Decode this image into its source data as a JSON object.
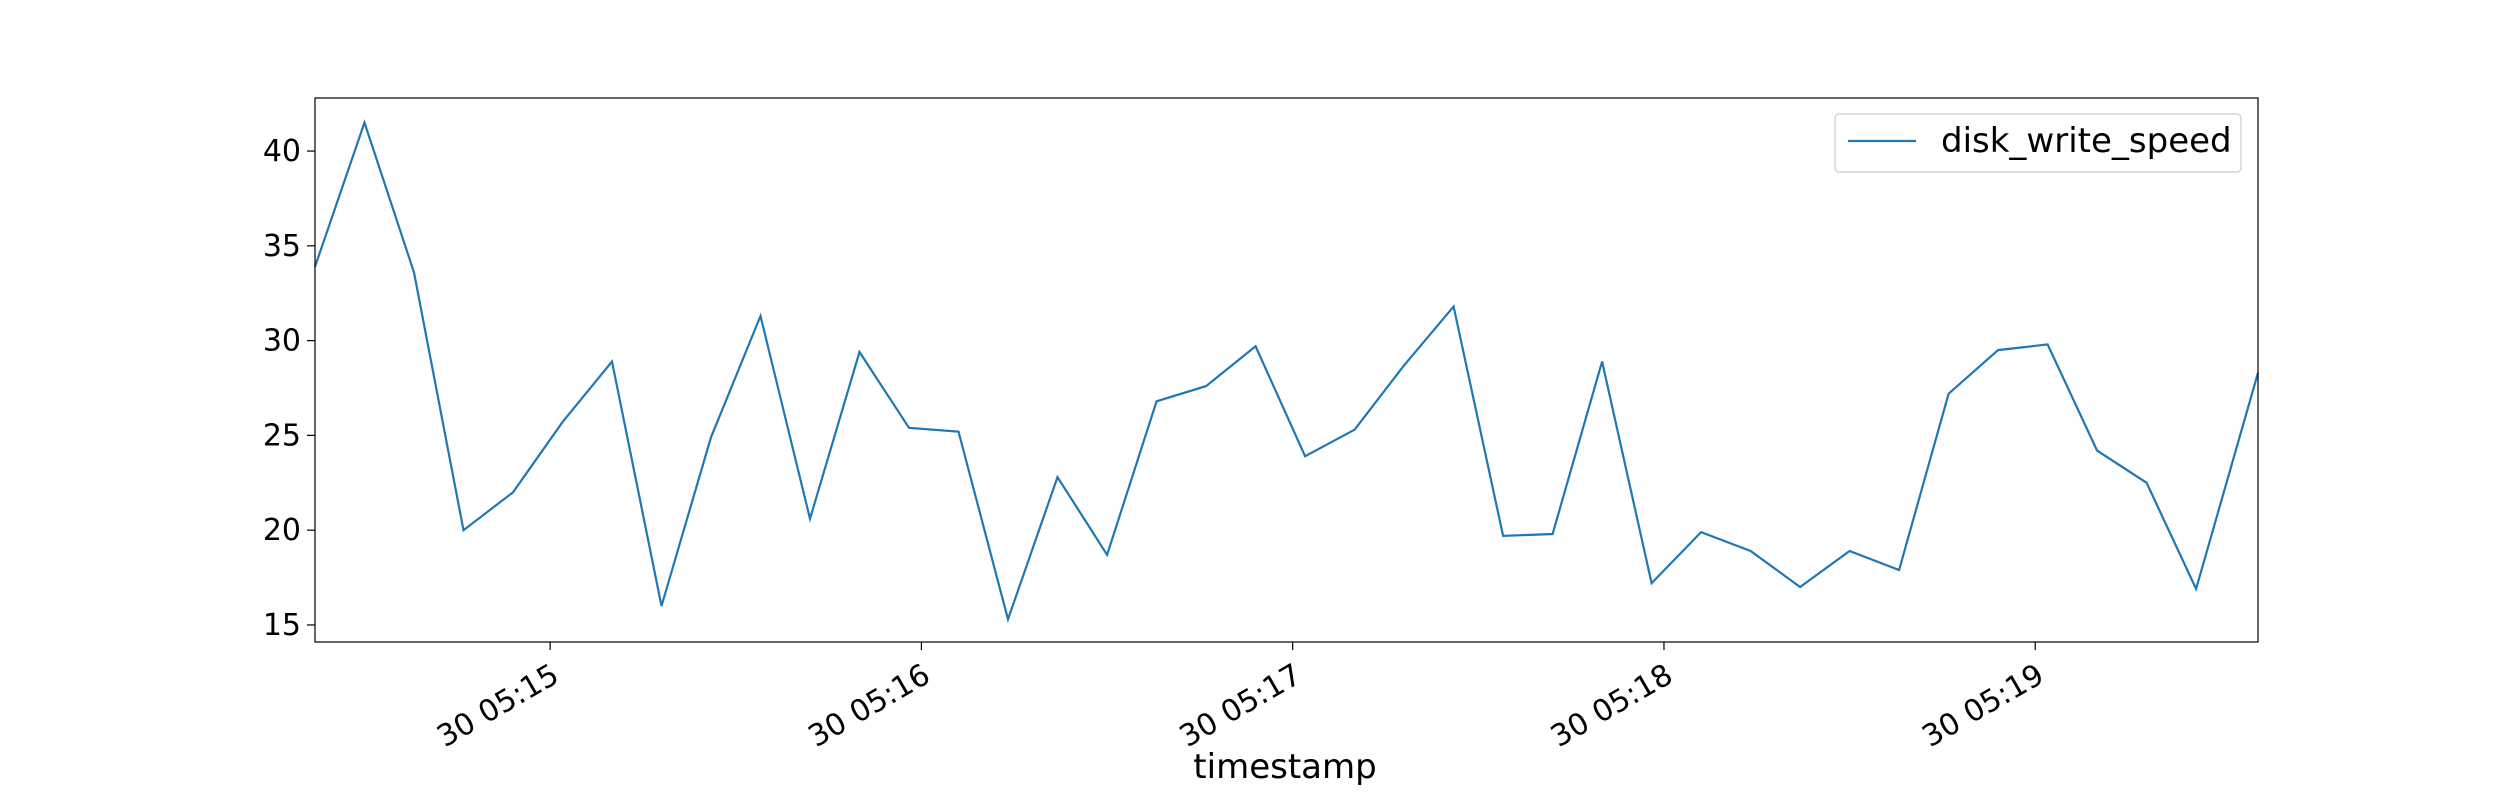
{
  "chart_data": {
    "type": "line",
    "title": "",
    "xlabel": "timestamp",
    "ylabel": "",
    "x_ticks": [
      "30 05:15",
      "30 05:16",
      "30 05:17",
      "30 05:18",
      "30 05:19"
    ],
    "y_ticks": [
      15,
      20,
      25,
      30,
      35,
      40
    ],
    "ylim": [
      14.1,
      42.8
    ],
    "x": [
      "05:14:22",
      "05:14:30",
      "05:14:38",
      "05:14:46",
      "05:14:54",
      "05:15:02",
      "05:15:10",
      "05:15:18",
      "05:15:26",
      "05:15:34",
      "05:15:42",
      "05:15:50",
      "05:15:58",
      "05:16:06",
      "05:16:14",
      "05:16:22",
      "05:16:30",
      "05:16:38",
      "05:16:46",
      "05:16:54",
      "05:17:02",
      "05:17:10",
      "05:17:18",
      "05:17:26",
      "05:17:34",
      "05:17:42",
      "05:17:50",
      "05:17:58",
      "05:18:06",
      "05:18:14",
      "05:18:22",
      "05:18:30",
      "05:18:38",
      "05:18:46",
      "05:18:54",
      "05:19:02",
      "05:19:10",
      "05:19:18",
      "05:19:26",
      "05:19:36"
    ],
    "series": [
      {
        "name": "disk_write_speed",
        "color": "#1f77b4",
        "values": [
          33.9,
          41.5,
          33.6,
          20.0,
          22.0,
          25.7,
          28.9,
          16.0,
          24.9,
          31.3,
          20.6,
          29.4,
          25.4,
          25.2,
          15.3,
          22.8,
          18.7,
          26.8,
          27.6,
          29.7,
          23.9,
          25.3,
          28.7,
          31.8,
          19.7,
          19.8,
          28.9,
          17.2,
          19.9,
          18.9,
          17.0,
          18.9,
          17.9,
          27.2,
          29.5,
          29.8,
          24.2,
          22.5,
          16.9,
          28.3
        ]
      }
    ],
    "legend": {
      "entries": [
        "disk_write_speed"
      ],
      "placement": "top-right"
    },
    "grid": false
  }
}
